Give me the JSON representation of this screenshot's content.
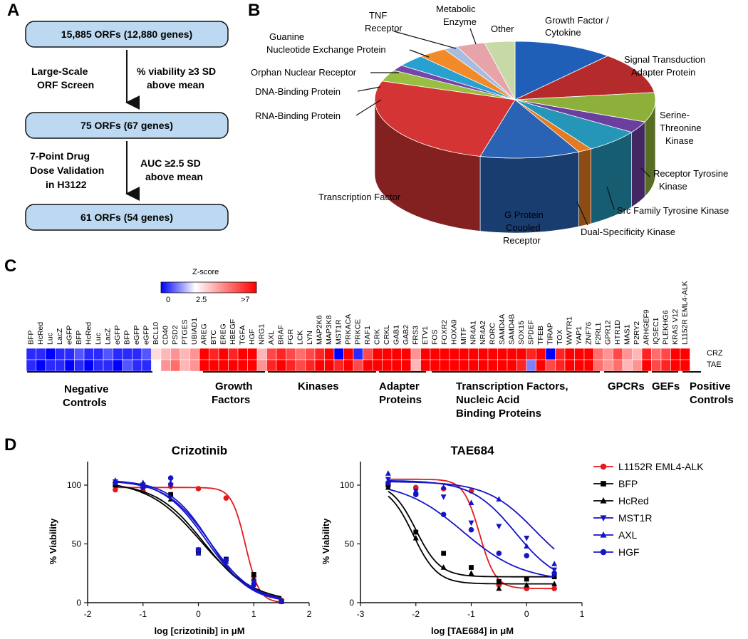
{
  "panels": {
    "a": "A",
    "b": "B",
    "c": "C",
    "d": "D"
  },
  "flowchart": {
    "boxes": [
      "15,885 ORFs (12,880 genes)",
      "75 ORFs (67 genes)",
      "61 ORFs (54 genes)"
    ],
    "step1_left": [
      "Large-Scale",
      "ORF Screen"
    ],
    "step1_right": [
      "% viability ≥3 SD",
      "above mean"
    ],
    "step2_left": [
      "7-Point Drug",
      "Dose Validation",
      "in H3122"
    ],
    "step2_right": [
      "AUC ≥2.5 SD",
      "above mean"
    ]
  },
  "pie": {
    "slices": [
      {
        "label": [
          "Growth Factor /",
          "Cytokine"
        ],
        "value": 11.5,
        "color": "#1f5fb8"
      },
      {
        "label": [
          "Signal Transduction",
          "Adapter Protein"
        ],
        "value": 11.5,
        "color": "#b52a2a"
      },
      {
        "label": [
          "Serine-",
          "Threonine",
          "Kinase"
        ],
        "value": 8.2,
        "color": "#8db03a"
      },
      {
        "label": [
          "Receptor Tyrosine",
          "Kinase"
        ],
        "value": 3.2,
        "color": "#6b3fa0"
      },
      {
        "label": [
          "Src Family Tyrosine Kinase"
        ],
        "value": 6.5,
        "color": "#2596b8"
      },
      {
        "label": [
          "Dual-Specificity Kinase"
        ],
        "value": 1.6,
        "color": "#e57a22"
      },
      {
        "label": [
          "G Protein",
          "Coupled",
          "Receptor"
        ],
        "value": 11.5,
        "color": "#2a62b4"
      },
      {
        "label": [
          "Transcription Factor"
        ],
        "value": 26.2,
        "color": "#d43434"
      },
      {
        "label": [
          "RNA-Binding Protein"
        ],
        "value": 3.2,
        "color": "#98be42"
      },
      {
        "label": [
          "DNA-Binding Protein"
        ],
        "value": 1.6,
        "color": "#7545a8"
      },
      {
        "label": [
          "Orphan Nuclear Receptor"
        ],
        "value": 3.3,
        "color": "#28a0d0"
      },
      {
        "label": [
          "Guanine",
          "Nucleotide Exchange Protein"
        ],
        "value": 3.3,
        "color": "#f38a2a"
      },
      {
        "label": [
          "TNF",
          "Receptor"
        ],
        "value": 1.6,
        "color": "#a4bde0"
      },
      {
        "label": [
          "Metabolic",
          "Enzyme"
        ],
        "value": 3.3,
        "color": "#e6a4a8"
      },
      {
        "label": [
          "Other"
        ],
        "value": 3.5,
        "color": "#c7d9a6"
      }
    ]
  },
  "heatmap": {
    "legend_title": "Z-score",
    "legend_ticks": [
      "0",
      "2.5",
      ">7"
    ],
    "rows": [
      "CRZ",
      "TAE"
    ],
    "genes": [
      "BFP",
      "HcRed",
      "Luc",
      "LacZ",
      "eGFP",
      "BFP",
      "HcRed",
      "Luc",
      "LacZ",
      "eGFP",
      "BFP",
      "eGFP",
      "eGFP",
      "BCL10",
      "CD40",
      "PSD2",
      "PTGES",
      "UBIAD1",
      "AREG",
      "BTC",
      "EREG",
      "HBEGF",
      "TGFA",
      "HGF",
      "NRG1",
      "AXL",
      "BRAF",
      "FGR",
      "LCK",
      "LYN",
      "MAP2K6",
      "MAP3K8",
      "MST1R",
      "PRKACA",
      "PRKCE",
      "RAF1",
      "CRK",
      "CRKL",
      "GAB1",
      "GAB2",
      "FRS3",
      "ETV1",
      "FOS",
      "FOXR2",
      "HOXA9",
      "MITF",
      "NR4A1",
      "NR4A2",
      "RORC",
      "SAMD4A",
      "SAMD4B",
      "SOX15",
      "SPDEF",
      "TFEB",
      "TIRAP",
      "TOX",
      "WWTR1",
      "YAP1",
      "ZNF76",
      "F2RL1",
      "GPR12",
      "HTR1D",
      "MAS1",
      "P2RY2",
      "ARHGEF9",
      "IQSEC1",
      "PLEKHG6",
      "KRAS V12",
      "L1152R EML4-ALK"
    ],
    "crz": [
      -5,
      -5,
      -6,
      -5,
      -5,
      -4,
      -5,
      -5,
      -4,
      -5,
      -5,
      -5,
      -4,
      1,
      2,
      3,
      2,
      3,
      7,
      6,
      7,
      6,
      8,
      7,
      2,
      5,
      6,
      5,
      4,
      5,
      6,
      7,
      -6,
      7,
      -5,
      5,
      7,
      8,
      8,
      7,
      3,
      8,
      8,
      7,
      8,
      8,
      7,
      8,
      8,
      7,
      8,
      7,
      6,
      8,
      -6,
      6,
      8,
      8,
      7,
      4,
      3,
      5,
      3,
      2,
      6,
      4,
      5,
      8,
      8
    ],
    "tae": [
      -5,
      -6,
      -5,
      -5,
      -6,
      -5,
      -6,
      -5,
      -5,
      -6,
      -4,
      -5,
      -5,
      0,
      3,
      4,
      2,
      3,
      8,
      7,
      8,
      7,
      8,
      8,
      3,
      6,
      7,
      6,
      5,
      6,
      7,
      8,
      6,
      8,
      5,
      8,
      8,
      8,
      7,
      8,
      2,
      8,
      8,
      8,
      8,
      7,
      8,
      8,
      8,
      8,
      7,
      6,
      -3,
      8,
      5,
      6,
      8,
      8,
      8,
      4,
      3,
      4,
      2,
      3,
      7,
      5,
      6,
      8,
      8
    ],
    "groups": [
      {
        "lines": [
          "Negative",
          "Controls"
        ]
      },
      {
        "lines": [
          "Growth",
          "Factors"
        ]
      },
      {
        "lines": [
          "Kinases"
        ]
      },
      {
        "lines": [
          "Adapter",
          "Proteins"
        ]
      },
      {
        "lines": [
          "Transcription Factors,",
          "Nucleic Acid",
          "Binding Proteins"
        ]
      },
      {
        "lines": [
          "GPCRs"
        ]
      },
      {
        "lines": [
          "GEFs"
        ]
      },
      {
        "lines": [
          "Positive",
          "Controls"
        ]
      }
    ]
  },
  "chart_data": [
    {
      "type": "line",
      "title": "Crizotinib",
      "xlabel": "log [crizotinib] in μM",
      "ylabel": "% Viability",
      "xlim": [
        -2,
        2
      ],
      "ylim": [
        0,
        120
      ],
      "xticks": [
        "-2",
        "-1",
        "0",
        "1",
        "2"
      ],
      "yticks": [
        "0",
        "50",
        "100"
      ],
      "x": [
        -1.5,
        -1.0,
        -0.5,
        0.0,
        0.5,
        1.0,
        1.5
      ],
      "series": [
        {
          "name": "L1152R EML4-ALK",
          "values": [
            96,
            95,
            99,
            97,
            89,
            22,
            2
          ],
          "ic50": 0.85,
          "top": 98,
          "bottom": 0,
          "hill": 3.5
        },
        {
          "name": "BFP",
          "values": [
            100,
            100,
            92,
            43,
            37,
            24,
            1
          ],
          "ic50": 0.1,
          "top": 102,
          "bottom": 0,
          "hill": 1.0
        },
        {
          "name": "HcRed",
          "values": [
            101,
            99,
            88,
            45,
            35,
            20,
            1
          ],
          "ic50": 0.05,
          "top": 104,
          "bottom": 0,
          "hill": 0.9
        },
        {
          "name": "MST1R",
          "values": [
            103,
            100,
            100,
            45,
            36,
            18,
            1
          ],
          "ic50": 0.2,
          "top": 104,
          "bottom": 0,
          "hill": 1.1
        },
        {
          "name": "AXL",
          "values": [
            104,
            102,
            102,
            42,
            35,
            18,
            1
          ],
          "ic50": 0.15,
          "top": 105,
          "bottom": 0,
          "hill": 1.1
        },
        {
          "name": "HGF",
          "values": [
            102,
            98,
            106,
            45,
            36,
            15,
            1
          ],
          "ic50": 0.2,
          "top": 104,
          "bottom": 0,
          "hill": 1.2
        }
      ]
    },
    {
      "type": "line",
      "title": "TAE684",
      "xlabel": "log [TAE684] in μM",
      "ylabel": "% Viability",
      "xlim": [
        -3,
        1
      ],
      "ylim": [
        0,
        120
      ],
      "xticks": [
        "-3",
        "-2",
        "-1",
        "0",
        "1"
      ],
      "yticks": [
        "0",
        "50",
        "100"
      ],
      "x": [
        -2.5,
        -2.0,
        -1.5,
        -1.0,
        -0.5,
        0.0,
        0.5
      ],
      "series": [
        {
          "name": "L1152R EML4-ALK",
          "values": [
            100,
            98,
            97,
            95,
            15,
            12,
            12
          ],
          "ic50": -0.85,
          "top": 105,
          "bottom": 12,
          "hill": 3.0
        },
        {
          "name": "BFP",
          "values": [
            100,
            60,
            42,
            30,
            18,
            20,
            22
          ],
          "ic50": -2.0,
          "top": 102,
          "bottom": 22,
          "hill": 2.0
        },
        {
          "name": "HcRed",
          "values": [
            98,
            55,
            30,
            25,
            12,
            15,
            16
          ],
          "ic50": -2.05,
          "top": 100,
          "bottom": 16,
          "hill": 2.0
        },
        {
          "name": "MST1R",
          "values": [
            105,
            95,
            90,
            68,
            65,
            55,
            28
          ],
          "ic50": -0.2,
          "top": 104,
          "bottom": 15,
          "hill": 1.1
        },
        {
          "name": "AXL",
          "values": [
            110,
            95,
            98,
            85,
            88,
            48,
            33
          ],
          "ic50": 0.15,
          "top": 103,
          "bottom": 20,
          "hill": 1.0
        },
        {
          "name": "HGF",
          "values": [
            102,
            92,
            75,
            62,
            42,
            40,
            25
          ],
          "ic50": -1.15,
          "top": 103,
          "bottom": 18,
          "hill": 0.8
        }
      ]
    }
  ],
  "legend": [
    {
      "name": "L1152R EML4-ALK",
      "color": "#e41a1c",
      "marker": "circle"
    },
    {
      "name": "BFP",
      "color": "#000000",
      "marker": "square"
    },
    {
      "name": "HcRed",
      "color": "#000000",
      "marker": "triangle-up"
    },
    {
      "name": "MST1R",
      "color": "#1515c8",
      "marker": "triangle-down"
    },
    {
      "name": "AXL",
      "color": "#1515c8",
      "marker": "triangle-up"
    },
    {
      "name": "HGF",
      "color": "#1515c8",
      "marker": "circle"
    }
  ]
}
